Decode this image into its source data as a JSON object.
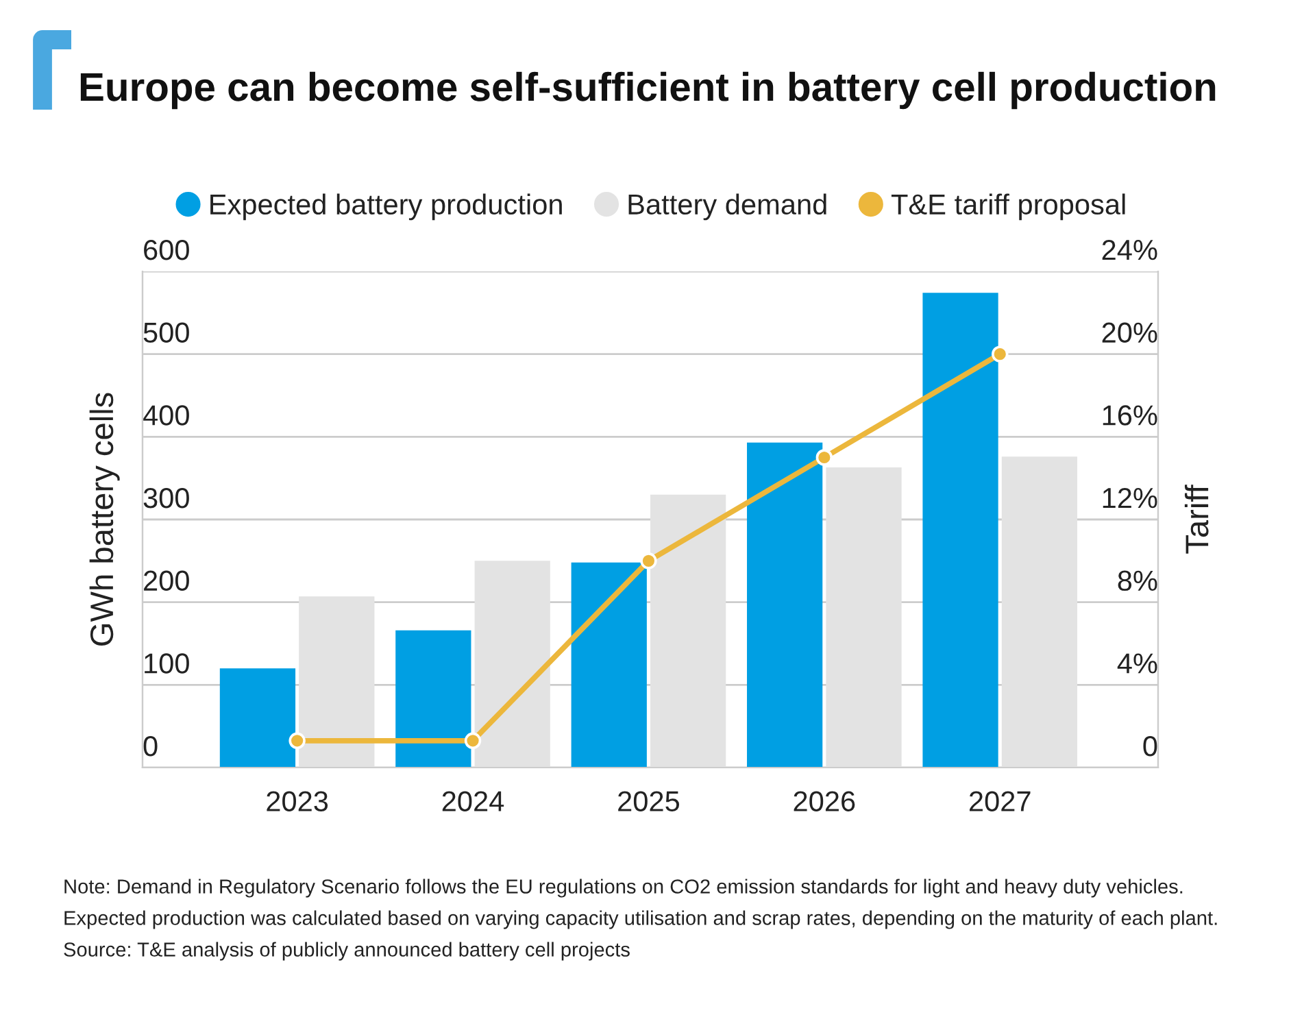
{
  "chart_data": {
    "type": "bar",
    "title": "Europe can become self-sufficient in battery cell production",
    "categories": [
      "2023",
      "2024",
      "2025",
      "2026",
      "2027"
    ],
    "series": [
      {
        "name": "Expected battery production",
        "color": "#009fe3",
        "values": [
          120,
          166,
          248,
          393,
          574
        ]
      },
      {
        "name": "Battery demand",
        "color": "#e3e3e3",
        "values": [
          207,
          250,
          330,
          363,
          376
        ]
      },
      {
        "name": "T&E tariff proposal",
        "type": "line",
        "axis": "y2",
        "color": "#ecb73c",
        "values": [
          1.3,
          1.3,
          10,
          15,
          20
        ]
      }
    ],
    "marker": "circle",
    "ylabel": "GWh battery cells",
    "y2label": "Tariff",
    "ylim": [
      0,
      600
    ],
    "yticks": [
      0,
      100,
      200,
      300,
      400,
      500,
      600
    ],
    "y2lim": [
      0,
      24
    ],
    "y2ticks": [
      0,
      {
        "value": 4,
        "label": "4%"
      },
      {
        "value": 8,
        "label": "8%"
      },
      {
        "value": 12,
        "label": "12%"
      },
      {
        "value": 16,
        "label": "16%"
      },
      {
        "value": 20,
        "label": "20%"
      },
      {
        "value": 24,
        "label": "24%"
      }
    ],
    "grid": "y",
    "legend": "top",
    "annotations": [
      "Note: Demand in Regulatory Scenario follows the EU regulations on CO2 emission standards for light and heavy duty vehicles.",
      "Expected production was calculated based on varying capacity utilisation and scrap rates, depending on the maturity of each plant.",
      "Source: T&E analysis of publicly announced battery cell projects"
    ]
  }
}
